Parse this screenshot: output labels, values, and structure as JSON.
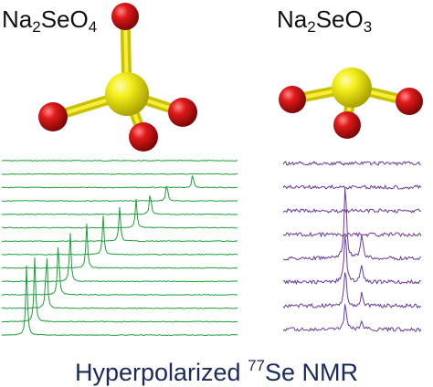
{
  "left_molecule": {
    "formula_parts": {
      "base": "Na",
      "sub1": "2",
      "mid": "SeO",
      "sub2": "4"
    },
    "central_atom_color": "#f2ee10",
    "outer_atom_color": "#d81818",
    "bond_color": "#d4c81c"
  },
  "right_molecule": {
    "formula_parts": {
      "base": "Na",
      "sub1": "2",
      "mid": "SeO",
      "sub2": "3"
    },
    "central_atom_color": "#f2ee10",
    "outer_atom_color": "#d81818",
    "bond_color": "#d4c81c"
  },
  "left_spectra": {
    "trace_count": 14,
    "color": "#1f9e3a",
    "peak_positions": [
      null,
      null,
      0.81,
      0.7,
      0.63,
      0.57,
      0.5,
      0.43,
      0.36,
      0.29,
      0.24,
      0.19,
      0.14,
      0.105
    ]
  },
  "right_spectra": {
    "trace_count": 8,
    "color": "#6a3a9c"
  },
  "caption": {
    "prefix": "Hyperpolarized ",
    "isotope": "77",
    "suffix": "Se NMR"
  }
}
